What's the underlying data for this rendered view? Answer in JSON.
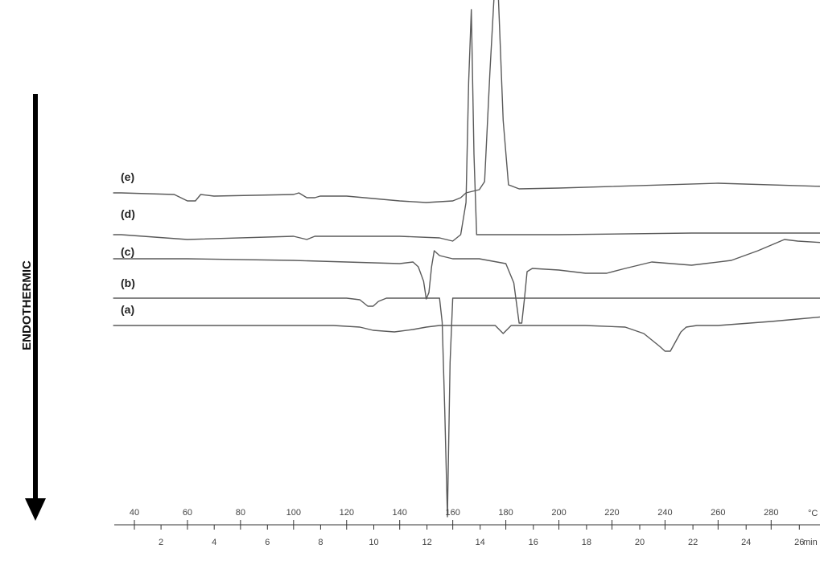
{
  "chart_data": {
    "type": "line",
    "ylabel": "ENDOTHERMIC",
    "axes": {
      "temperature": {
        "unit": "°C",
        "range": [
          32,
          300
        ],
        "ticks": [
          40,
          60,
          80,
          100,
          120,
          140,
          160,
          180,
          200,
          220,
          240,
          260,
          280
        ]
      },
      "time": {
        "unit": "min",
        "range": [
          0,
          27
        ],
        "ticks": [
          2,
          4,
          6,
          8,
          10,
          12,
          14,
          16,
          18,
          20,
          22,
          24,
          26
        ]
      }
    },
    "grid": false,
    "legend": "none",
    "series": [
      {
        "name": "(a)",
        "x": [
          32,
          35,
          60,
          100,
          115,
          125,
          130,
          138,
          145,
          150,
          155,
          158,
          160,
          165,
          170,
          176,
          179,
          182,
          185,
          190,
          200,
          210,
          225,
          232,
          238,
          240,
          242,
          244,
          246,
          248,
          252,
          260,
          280,
          290,
          300
        ],
        "y": [
          0,
          0,
          0,
          0,
          0,
          -2,
          -6,
          -8,
          -5,
          -2,
          0,
          0,
          0,
          0,
          0,
          0,
          -10,
          0,
          0,
          0,
          0,
          0,
          -2,
          -10,
          -26,
          -32,
          -32,
          -20,
          -8,
          -2,
          0,
          0,
          5,
          8,
          11
        ]
      },
      {
        "name": "(b)",
        "x": [
          32,
          35,
          80,
          120,
          125,
          128,
          130,
          132,
          135,
          140,
          150,
          155,
          156,
          157,
          158,
          159,
          160,
          170,
          200,
          250,
          280,
          300
        ],
        "y": [
          0,
          0,
          0,
          0,
          -2,
          -10,
          -10,
          -4,
          0,
          0,
          0,
          0,
          -30,
          -140,
          -272,
          -80,
          0,
          0,
          0,
          0,
          0,
          0
        ]
      },
      {
        "name": "(c)",
        "x": [
          32,
          35,
          60,
          100,
          140,
          145,
          147,
          149,
          150,
          151,
          152,
          153,
          155,
          160,
          170,
          180,
          183,
          185,
          186,
          187,
          188,
          190,
          200,
          210,
          218,
          225,
          235,
          250,
          255,
          265,
          275,
          285,
          290,
          300
        ],
        "y": [
          0,
          0,
          0,
          -2,
          -6,
          -4,
          -10,
          -28,
          -50,
          -42,
          -10,
          10,
          4,
          0,
          0,
          -6,
          -30,
          -80,
          -80,
          -50,
          -16,
          -12,
          -14,
          -18,
          -18,
          -12,
          -4,
          -8,
          -6,
          -2,
          10,
          24,
          22,
          20
        ]
      },
      {
        "name": "(d)",
        "x": [
          32,
          35,
          60,
          100,
          105,
          108,
          110,
          140,
          155,
          160,
          163,
          165,
          166,
          167,
          168,
          169,
          170,
          175,
          200,
          250,
          300
        ],
        "y": [
          0,
          0,
          -6,
          -2,
          -6,
          -2,
          -2,
          -2,
          -4,
          -8,
          0,
          40,
          190,
          280,
          100,
          0,
          0,
          0,
          0,
          2,
          2
        ]
      },
      {
        "name": "(e)",
        "x": [
          32,
          35,
          55,
          60,
          63,
          65,
          70,
          100,
          102,
          105,
          108,
          110,
          120,
          140,
          150,
          160,
          163,
          165,
          170,
          172,
          174,
          176,
          177,
          179,
          181,
          185,
          200,
          260,
          300
        ],
        "y": [
          0,
          0,
          -2,
          -10,
          -10,
          -2,
          -4,
          -2,
          0,
          -6,
          -6,
          -4,
          -4,
          -10,
          -12,
          -10,
          -6,
          0,
          4,
          14,
          150,
          270,
          260,
          90,
          10,
          5,
          6,
          12,
          8
        ]
      }
    ]
  }
}
